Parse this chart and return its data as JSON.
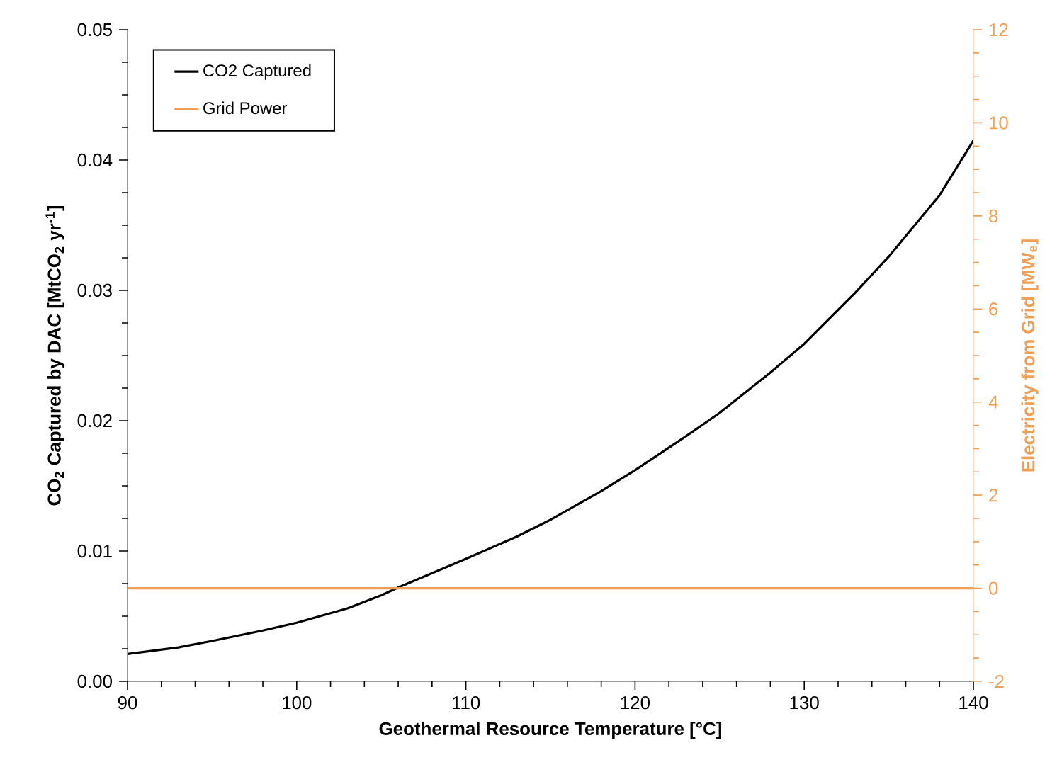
{
  "chart_data": {
    "type": "line",
    "xlabel": "Geothermal Resource Temperature [°C]",
    "ylabel": "CO$_{2}$ Captured by DAC [MtCO$_{2}$ yr$^{-1}$]",
    "y2label": "Electricity from Grid [MW$_{e}$]",
    "xlim": [
      90,
      140
    ],
    "xticks": [
      90,
      100,
      110,
      120,
      130,
      140
    ],
    "ylim": [
      0,
      0.05
    ],
    "yticks": [
      {
        "value": 0,
        "label": "0.00"
      },
      {
        "value": 0.01,
        "label": "0.01"
      },
      {
        "value": 0.02,
        "label": "0.02"
      },
      {
        "value": 0.03,
        "label": "0.03"
      },
      {
        "value": 0.04,
        "label": "0.04"
      },
      {
        "value": 0.05,
        "label": "0.05"
      }
    ],
    "y2lim": [
      -2,
      12
    ],
    "y2ticks": [
      -2,
      0,
      2,
      4,
      6,
      8,
      10,
      12
    ],
    "legend": "top left",
    "grid": false,
    "marker": "none",
    "line_style": "solid",
    "series": [
      {
        "name": "CO2 Captured",
        "color": "#000000",
        "x": [
          90,
          93,
          95,
          98,
          100,
          103,
          105,
          106,
          108,
          110,
          113,
          115,
          118,
          120,
          123,
          125,
          128,
          130,
          133,
          135,
          138,
          140
        ],
        "values": [
          0.0021,
          0.0026,
          0.0031,
          0.0039,
          0.0045,
          0.0056,
          0.0066,
          0.0072,
          0.0083,
          0.0094,
          0.0111,
          0.0124,
          0.0146,
          0.0162,
          0.0188,
          0.0206,
          0.0237,
          0.0259,
          0.0298,
          0.0326,
          0.0373,
          0.0415
        ]
      },
      {
        "name": "Grid Power",
        "color": "#ef9f56",
        "axis": "y2",
        "x": [
          90,
          140
        ],
        "values": [
          0,
          0
        ]
      }
    ]
  }
}
